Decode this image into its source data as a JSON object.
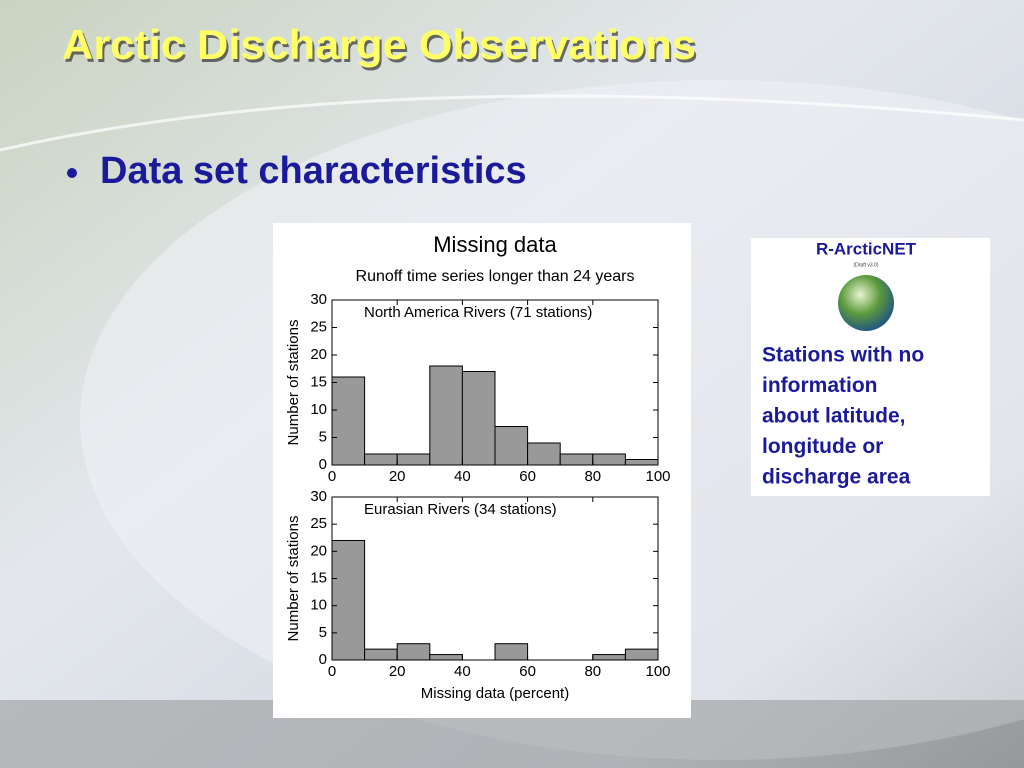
{
  "slide_title": "Arctic Discharge Observations",
  "bullet": "Data set characteristics",
  "logo": {
    "name": "R-ArcticNET",
    "version": "(Draft v3.0)"
  },
  "note_lines": [
    "Stations with no",
    "information",
    "about latitude,",
    "longitude or",
    "discharge area"
  ],
  "chart_data": [
    {
      "type": "histogram",
      "title": "Missing data",
      "subtitle": "Runoff time series longer than 24 years",
      "annotation": "North America Rivers (71 stations)",
      "ylabel": "Number of stations",
      "bins": [
        0,
        10,
        20,
        30,
        40,
        50,
        60,
        70,
        80,
        90,
        100
      ],
      "values": [
        16,
        2,
        2,
        18,
        17,
        7,
        4,
        2,
        2,
        1
      ],
      "color": "#999999",
      "xlim": [
        0,
        100
      ],
      "xticks": [
        0,
        20,
        40,
        60,
        80,
        100
      ],
      "ylim": [
        0,
        30
      ],
      "yticks": [
        0,
        5,
        10,
        15,
        20,
        25,
        30
      ]
    },
    {
      "type": "histogram",
      "annotation": "Eurasian Rivers (34 stations)",
      "ylabel": "Number of stations",
      "xlabel": "Missing data (percent)",
      "bins": [
        0,
        10,
        20,
        30,
        40,
        50,
        60,
        70,
        80,
        90,
        100
      ],
      "values": [
        22,
        2,
        3,
        1,
        0,
        3,
        0,
        0,
        1,
        2
      ],
      "color": "#999999",
      "xlim": [
        0,
        100
      ],
      "xticks": [
        0,
        20,
        40,
        60,
        80,
        100
      ],
      "ylim": [
        0,
        30
      ],
      "yticks": [
        0,
        5,
        10,
        15,
        20,
        25,
        30
      ]
    }
  ]
}
